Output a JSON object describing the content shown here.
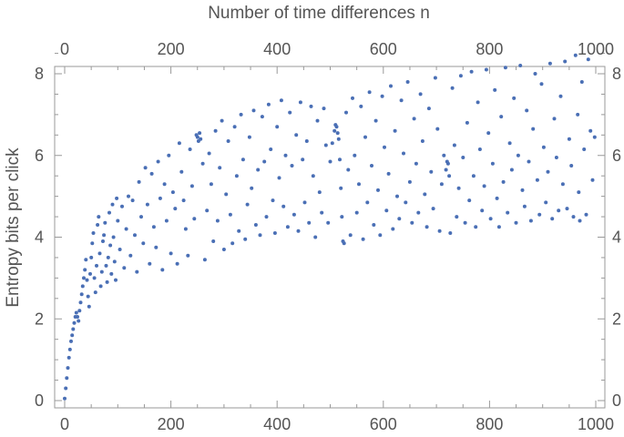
{
  "chart_data": {
    "type": "scatter",
    "title": "",
    "xlabel_top": "Number of time differences n",
    "ylabel": "Entropy bits per click",
    "xlim": [
      0,
      1000
    ],
    "ylim": [
      0,
      8.7
    ],
    "x_ticks": [
      0,
      200,
      400,
      600,
      800,
      1000
    ],
    "y_ticks": [
      0,
      2,
      4,
      6,
      8
    ],
    "x_tick_labels": [
      "0",
      "200",
      "400",
      "600",
      "800",
      "1000"
    ],
    "y_tick_labels": [
      "0",
      "2",
      "4",
      "6",
      "8"
    ],
    "grid": false,
    "legend": "none",
    "point_color": "#4a6fb5",
    "series": [
      {
        "points": [
          [
            0,
            0.05
          ],
          [
            2,
            0.3
          ],
          [
            4,
            0.55
          ],
          [
            6,
            0.8
          ],
          [
            8,
            1.05
          ],
          [
            10,
            1.25
          ],
          [
            12,
            1.45
          ],
          [
            14,
            1.6
          ],
          [
            16,
            1.75
          ],
          [
            18,
            1.9
          ],
          [
            20,
            2.05
          ],
          [
            22,
            2.15
          ],
          [
            24,
            2.05
          ],
          [
            26,
            1.95
          ],
          [
            28,
            2.2
          ],
          [
            30,
            2.4
          ],
          [
            32,
            2.6
          ],
          [
            34,
            2.8
          ],
          [
            36,
            3.0
          ],
          [
            38,
            3.2
          ],
          [
            40,
            3.45
          ],
          [
            42,
            2.95
          ],
          [
            44,
            2.55
          ],
          [
            46,
            2.3
          ],
          [
            48,
            3.1
          ],
          [
            50,
            3.5
          ],
          [
            52,
            3.85
          ],
          [
            54,
            4.1
          ],
          [
            56,
            3.0
          ],
          [
            58,
            2.65
          ],
          [
            60,
            3.3
          ],
          [
            62,
            4.3
          ],
          [
            64,
            4.5
          ],
          [
            66,
            3.6
          ],
          [
            68,
            2.8
          ],
          [
            70,
            3.15
          ],
          [
            72,
            3.9
          ],
          [
            74,
            4.05
          ],
          [
            76,
            4.35
          ],
          [
            78,
            3.3
          ],
          [
            80,
            2.9
          ],
          [
            82,
            3.5
          ],
          [
            84,
            4.6
          ],
          [
            86,
            3.8
          ],
          [
            88,
            3.1
          ],
          [
            90,
            4.8
          ],
          [
            92,
            4.0
          ],
          [
            94,
            3.4
          ],
          [
            96,
            2.95
          ],
          [
            98,
            4.95
          ],
          [
            100,
            4.4
          ],
          [
            104,
            3.7
          ],
          [
            108,
            4.75
          ],
          [
            112,
            3.25
          ],
          [
            116,
            4.2
          ],
          [
            120,
            5.0
          ],
          [
            124,
            3.55
          ],
          [
            128,
            4.9
          ],
          [
            132,
            4.05
          ],
          [
            136,
            3.15
          ],
          [
            140,
            5.35
          ],
          [
            144,
            4.5
          ],
          [
            148,
            3.85
          ],
          [
            152,
            5.7
          ],
          [
            156,
            4.8
          ],
          [
            160,
            3.35
          ],
          [
            164,
            5.55
          ],
          [
            168,
            4.25
          ],
          [
            172,
            3.75
          ],
          [
            176,
            5.85
          ],
          [
            180,
            4.95
          ],
          [
            184,
            3.2
          ],
          [
            188,
            5.3
          ],
          [
            192,
            4.4
          ],
          [
            196,
            6.0
          ],
          [
            200,
            3.6
          ],
          [
            204,
            5.1
          ],
          [
            208,
            4.7
          ],
          [
            212,
            3.35
          ],
          [
            216,
            6.3
          ],
          [
            220,
            5.6
          ],
          [
            224,
            4.9
          ],
          [
            228,
            4.2
          ],
          [
            232,
            3.55
          ],
          [
            236,
            6.15
          ],
          [
            240,
            5.25
          ],
          [
            244,
            4.45
          ],
          [
            248,
            6.5
          ],
          [
            250,
            6.45
          ],
          [
            252,
            6.35
          ],
          [
            254,
            6.55
          ],
          [
            256,
            6.4
          ],
          [
            260,
            5.8
          ],
          [
            264,
            3.45
          ],
          [
            268,
            4.65
          ],
          [
            272,
            6.05
          ],
          [
            276,
            5.3
          ],
          [
            280,
            3.9
          ],
          [
            284,
            6.6
          ],
          [
            288,
            4.4
          ],
          [
            292,
            5.7
          ],
          [
            296,
            6.85
          ],
          [
            300,
            3.7
          ],
          [
            304,
            5.05
          ],
          [
            308,
            6.35
          ],
          [
            312,
            4.55
          ],
          [
            316,
            3.85
          ],
          [
            320,
            6.7
          ],
          [
            324,
            5.5
          ],
          [
            328,
            4.15
          ],
          [
            332,
            7.0
          ],
          [
            336,
            5.9
          ],
          [
            340,
            3.95
          ],
          [
            344,
            4.8
          ],
          [
            348,
            6.45
          ],
          [
            352,
            5.2
          ],
          [
            356,
            7.1
          ],
          [
            360,
            4.3
          ],
          [
            364,
            5.65
          ],
          [
            368,
            4.05
          ],
          [
            372,
            6.95
          ],
          [
            376,
            5.85
          ],
          [
            380,
            4.5
          ],
          [
            384,
            7.25
          ],
          [
            388,
            6.15
          ],
          [
            392,
            4.9
          ],
          [
            396,
            4.1
          ],
          [
            400,
            6.7
          ],
          [
            404,
            5.45
          ],
          [
            408,
            7.35
          ],
          [
            412,
            4.75
          ],
          [
            416,
            6.0
          ],
          [
            420,
            4.25
          ],
          [
            424,
            7.05
          ],
          [
            428,
            5.75
          ],
          [
            432,
            4.55
          ],
          [
            436,
            6.5
          ],
          [
            440,
            4.15
          ],
          [
            444,
            7.3
          ],
          [
            448,
            5.9
          ],
          [
            452,
            4.85
          ],
          [
            456,
            6.35
          ],
          [
            460,
            4.35
          ],
          [
            464,
            7.2
          ],
          [
            468,
            5.5
          ],
          [
            472,
            4.0
          ],
          [
            476,
            6.85
          ],
          [
            480,
            5.1
          ],
          [
            484,
            4.6
          ],
          [
            488,
            7.15
          ],
          [
            492,
            6.25
          ],
          [
            496,
            4.35
          ],
          [
            500,
            5.85
          ],
          [
            504,
            6.3
          ],
          [
            508,
            6.6
          ],
          [
            510,
            6.75
          ],
          [
            512,
            6.7
          ],
          [
            514,
            6.55
          ],
          [
            516,
            6.4
          ],
          [
            518,
            5.9
          ],
          [
            520,
            5.2
          ],
          [
            522,
            4.5
          ],
          [
            524,
            3.9
          ],
          [
            526,
            3.85
          ],
          [
            530,
            7.05
          ],
          [
            534,
            5.65
          ],
          [
            538,
            4.05
          ],
          [
            542,
            7.4
          ],
          [
            546,
            6.0
          ],
          [
            550,
            4.6
          ],
          [
            554,
            5.3
          ],
          [
            558,
            7.2
          ],
          [
            562,
            3.95
          ],
          [
            566,
            6.45
          ],
          [
            570,
            4.85
          ],
          [
            574,
            7.55
          ],
          [
            578,
            5.75
          ],
          [
            582,
            4.3
          ],
          [
            586,
            6.85
          ],
          [
            590,
            5.15
          ],
          [
            594,
            4.05
          ],
          [
            598,
            7.45
          ],
          [
            602,
            6.2
          ],
          [
            606,
            4.65
          ],
          [
            610,
            5.55
          ],
          [
            614,
            7.7
          ],
          [
            618,
            4.2
          ],
          [
            622,
            6.6
          ],
          [
            626,
            5.0
          ],
          [
            630,
            4.45
          ],
          [
            634,
            7.35
          ],
          [
            638,
            6.05
          ],
          [
            642,
            4.85
          ],
          [
            646,
            7.8
          ],
          [
            650,
            5.35
          ],
          [
            654,
            4.35
          ],
          [
            658,
            6.9
          ],
          [
            662,
            5.8
          ],
          [
            666,
            4.6
          ],
          [
            670,
            7.5
          ],
          [
            674,
            6.35
          ],
          [
            678,
            5.05
          ],
          [
            682,
            4.25
          ],
          [
            686,
            7.15
          ],
          [
            690,
            5.6
          ],
          [
            694,
            4.7
          ],
          [
            698,
            7.9
          ],
          [
            702,
            6.65
          ],
          [
            706,
            4.15
          ],
          [
            710,
            5.3
          ],
          [
            714,
            6.0
          ],
          [
            718,
            5.65
          ],
          [
            720,
            5.85
          ],
          [
            722,
            5.8
          ],
          [
            724,
            5.5
          ],
          [
            726,
            4.1
          ],
          [
            730,
            7.65
          ],
          [
            734,
            6.25
          ],
          [
            738,
            4.5
          ],
          [
            742,
            5.2
          ],
          [
            746,
            7.95
          ],
          [
            750,
            5.95
          ],
          [
            754,
            4.35
          ],
          [
            758,
            6.8
          ],
          [
            762,
            4.9
          ],
          [
            766,
            8.05
          ],
          [
            770,
            5.5
          ],
          [
            774,
            4.25
          ],
          [
            778,
            7.3
          ],
          [
            782,
            6.15
          ],
          [
            786,
            4.65
          ],
          [
            790,
            5.25
          ],
          [
            794,
            8.1
          ],
          [
            798,
            6.55
          ],
          [
            802,
            4.45
          ],
          [
            806,
            5.8
          ],
          [
            810,
            7.6
          ],
          [
            814,
            4.95
          ],
          [
            818,
            4.25
          ],
          [
            822,
            6.95
          ],
          [
            826,
            5.35
          ],
          [
            830,
            8.15
          ],
          [
            834,
            4.6
          ],
          [
            838,
            6.3
          ],
          [
            842,
            5.65
          ],
          [
            846,
            7.4
          ],
          [
            850,
            4.35
          ],
          [
            854,
            6.0
          ],
          [
            858,
            8.2
          ],
          [
            862,
            5.15
          ],
          [
            866,
            4.75
          ],
          [
            870,
            7.1
          ],
          [
            874,
            5.85
          ],
          [
            878,
            4.4
          ],
          [
            882,
            6.65
          ],
          [
            886,
            8.0
          ],
          [
            890,
            5.4
          ],
          [
            894,
            4.55
          ],
          [
            898,
            7.75
          ],
          [
            902,
            6.2
          ],
          [
            906,
            4.85
          ],
          [
            910,
            5.6
          ],
          [
            914,
            8.25
          ],
          [
            918,
            4.45
          ],
          [
            922,
            6.9
          ],
          [
            926,
            5.95
          ],
          [
            930,
            4.65
          ],
          [
            934,
            7.45
          ],
          [
            938,
            5.3
          ],
          [
            942,
            8.3
          ],
          [
            946,
            4.7
          ],
          [
            950,
            6.4
          ],
          [
            954,
            5.75
          ],
          [
            958,
            4.5
          ],
          [
            962,
            8.45
          ],
          [
            966,
            7.0
          ],
          [
            968,
            5.1
          ],
          [
            970,
            4.4
          ],
          [
            974,
            7.8
          ],
          [
            978,
            6.15
          ],
          [
            982,
            4.55
          ],
          [
            986,
            8.35
          ],
          [
            990,
            6.6
          ],
          [
            994,
            5.4
          ],
          [
            998,
            6.45
          ]
        ]
      }
    ]
  }
}
